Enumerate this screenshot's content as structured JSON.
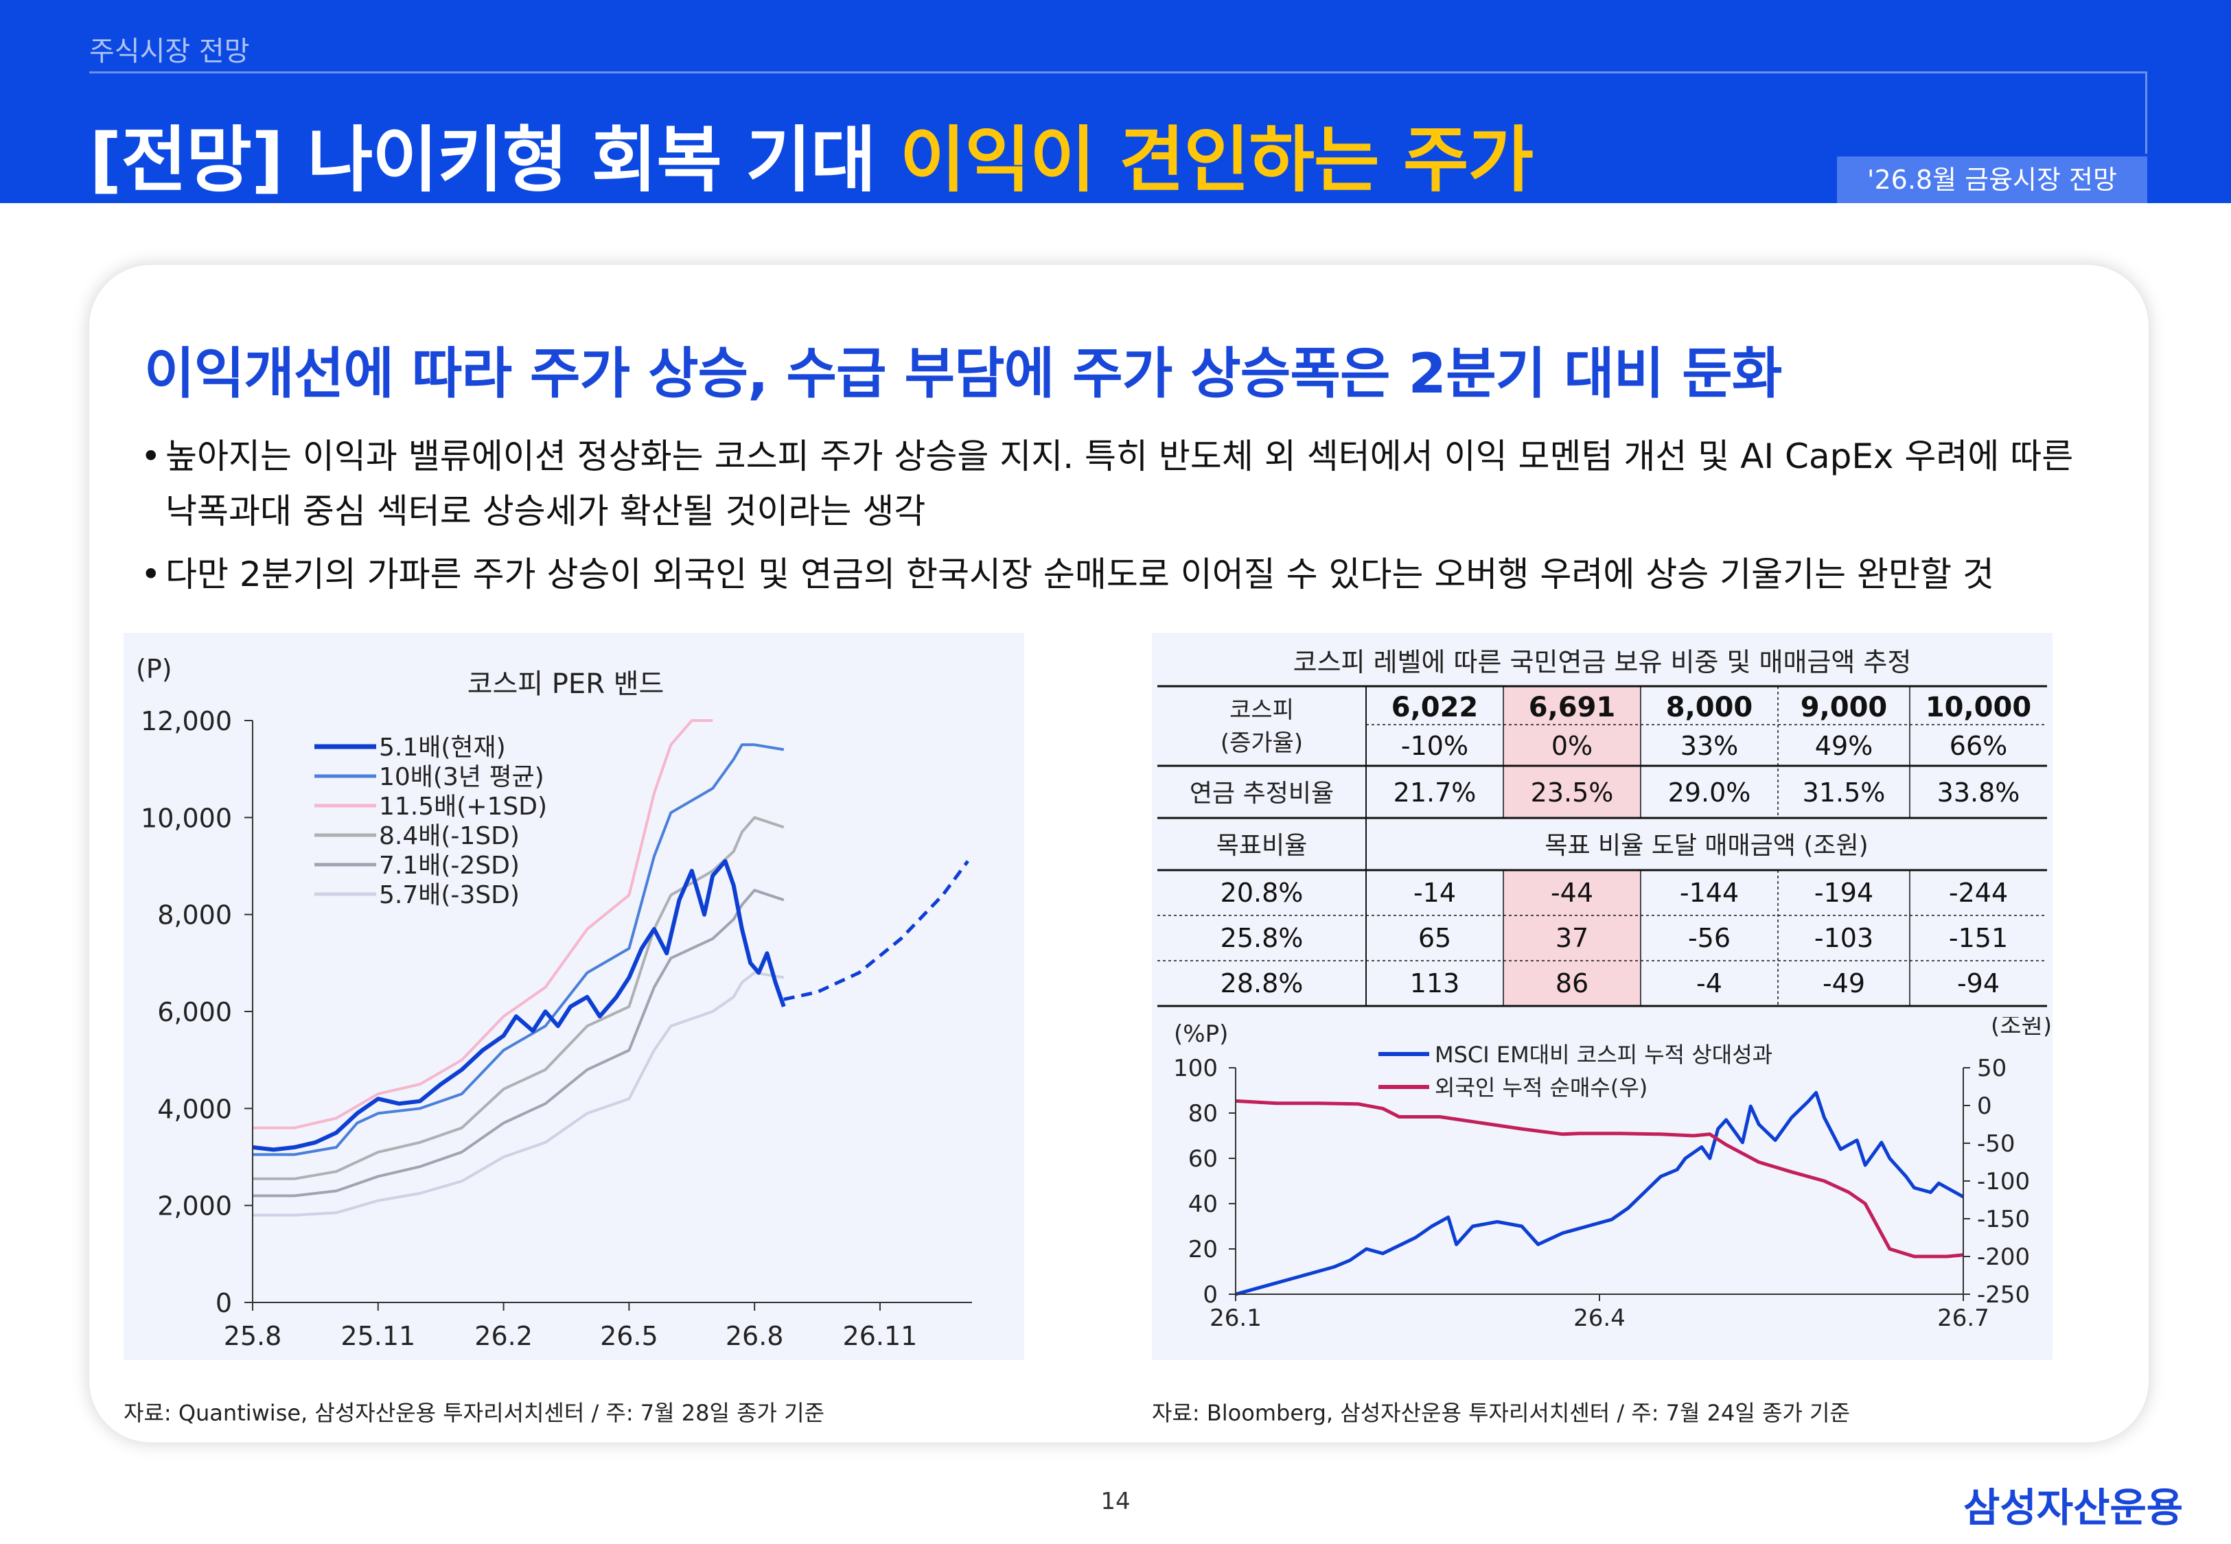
{
  "header": {
    "section_label": "주식시장 전망",
    "title_main": "[전망] 나이키형 회복 기대",
    "title_highlight": "이익이 견인하는 주가",
    "date_badge": "'26.8월 금융시장 전망"
  },
  "headline": "이익개선에 따라 주가 상승, 수급 부담에 주가 상승폭은 2분기 대비 둔화",
  "bullets": [
    "높아지는 이익과 밸류에이션 정상화는 코스피 주가 상승을 지지. 특히 반도체 외 섹터에서 이익 모멘텀 개선 및 AI CapEx 우려에 따른 낙폭과대 중심 섹터로 상승세가 확산될 것이라는 생각",
    "다만 2분기의 가파른 주가 상승이 외국인 및 연금의 한국시장 순매도로 이어질 수 있다는 오버행 우려에 상승 기울기는 완만할 것"
  ],
  "sources": {
    "left": "자료: Quantiwise, 삼성자산운용 투자리서치센터 / 주: 7월 28일 종가 기준",
    "right": "자료: Bloomberg, 삼성자산운용 투자리서치센터 / 주: 7월 24일 종가 기준"
  },
  "page_number": "14",
  "logo": "삼성자산운용",
  "colors": {
    "brand_blue": "#0B49E2",
    "highlight_yellow": "#FFC60A",
    "table_highlight": "#F7D6DC",
    "series_blue": "#0D3FD3",
    "series_crimson": "#C21F5B"
  },
  "chart_data": [
    {
      "type": "line",
      "title": "코스피 PER 밴드",
      "ylabel": "(P)",
      "ylim": [
        0,
        12000
      ],
      "yticks": [
        "0",
        "2,000",
        "4,000",
        "6,000",
        "8,000",
        "10,000",
        "12,000"
      ],
      "xticks": [
        "25.8",
        "25.11",
        "26.2",
        "26.5",
        "26.8",
        "26.11"
      ],
      "legend_position": "top-left",
      "series": [
        {
          "name": "5.1배(현재)",
          "color": "#0D3FD3",
          "points": [
            [
              0,
              3200
            ],
            [
              0.5,
              3150
            ],
            [
              1,
              3200
            ],
            [
              1.5,
              3300
            ],
            [
              2,
              3500
            ],
            [
              2.5,
              3900
            ],
            [
              3,
              4200
            ],
            [
              3.5,
              4100
            ],
            [
              4,
              4150
            ],
            [
              4.5,
              4500
            ],
            [
              5,
              4800
            ],
            [
              5.5,
              5200
            ],
            [
              6,
              5500
            ],
            [
              6.3,
              5900
            ],
            [
              6.7,
              5600
            ],
            [
              7,
              6000
            ],
            [
              7.3,
              5700
            ],
            [
              7.6,
              6100
            ],
            [
              8,
              6300
            ],
            [
              8.3,
              5900
            ],
            [
              8.7,
              6300
            ],
            [
              9,
              6700
            ],
            [
              9.3,
              7300
            ],
            [
              9.6,
              7700
            ],
            [
              9.9,
              7200
            ],
            [
              10.2,
              8300
            ],
            [
              10.5,
              8900
            ],
            [
              10.8,
              8000
            ],
            [
              11,
              8800
            ],
            [
              11.3,
              9100
            ],
            [
              11.5,
              8600
            ],
            [
              11.7,
              7700
            ],
            [
              11.9,
              7000
            ],
            [
              12.1,
              6800
            ],
            [
              12.3,
              7200
            ],
            [
              12.5,
              6600
            ],
            [
              12.7,
              6100
            ]
          ]
        },
        {
          "name": "10배(3년 평균)",
          "color": "#4A80D9",
          "points": [
            [
              0,
              3050
            ],
            [
              1,
              3050
            ],
            [
              2,
              3200
            ],
            [
              2.5,
              3700
            ],
            [
              3,
              3900
            ],
            [
              4,
              4000
            ],
            [
              5,
              4300
            ],
            [
              6,
              5200
            ],
            [
              7,
              5700
            ],
            [
              8,
              6800
            ],
            [
              9,
              7300
            ],
            [
              9.6,
              9200
            ],
            [
              10,
              10100
            ],
            [
              11,
              10600
            ],
            [
              11.5,
              11200
            ],
            [
              11.7,
              11500
            ],
            [
              12,
              11500
            ],
            [
              12.7,
              11400
            ]
          ]
        },
        {
          "name": "11.5배(+1SD)",
          "color": "#F6B6CE",
          "points": [
            [
              0,
              3600
            ],
            [
              1,
              3600
            ],
            [
              2,
              3800
            ],
            [
              3,
              4300
            ],
            [
              4,
              4500
            ],
            [
              5,
              5000
            ],
            [
              6,
              5900
            ],
            [
              7,
              6500
            ],
            [
              8,
              7700
            ],
            [
              9,
              8400
            ],
            [
              9.6,
              10500
            ],
            [
              10,
              11500
            ],
            [
              10.5,
              12000
            ],
            [
              11,
              12000
            ]
          ]
        },
        {
          "name": "8.4배(-1SD)",
          "color": "#AEB0B4",
          "points": [
            [
              0,
              2550
            ],
            [
              1,
              2550
            ],
            [
              2,
              2700
            ],
            [
              3,
              3100
            ],
            [
              4,
              3300
            ],
            [
              5,
              3600
            ],
            [
              6,
              4400
            ],
            [
              7,
              4800
            ],
            [
              8,
              5700
            ],
            [
              9,
              6100
            ],
            [
              9.6,
              7700
            ],
            [
              10,
              8400
            ],
            [
              11,
              8900
            ],
            [
              11.5,
              9300
            ],
            [
              11.7,
              9700
            ],
            [
              12,
              10000
            ],
            [
              12.7,
              9800
            ]
          ]
        },
        {
          "name": "7.1배(-2SD)",
          "color": "#9EA4B2",
          "points": [
            [
              0,
              2200
            ],
            [
              1,
              2200
            ],
            [
              2,
              2300
            ],
            [
              3,
              2600
            ],
            [
              4,
              2800
            ],
            [
              5,
              3100
            ],
            [
              6,
              3700
            ],
            [
              7,
              4100
            ],
            [
              8,
              4800
            ],
            [
              9,
              5200
            ],
            [
              9.6,
              6500
            ],
            [
              10,
              7100
            ],
            [
              11,
              7500
            ],
            [
              11.5,
              7900
            ],
            [
              11.7,
              8200
            ],
            [
              12,
              8500
            ],
            [
              12.7,
              8300
            ]
          ]
        },
        {
          "name": "5.7배(-3SD)",
          "color": "#CDD2E4",
          "points": [
            [
              0,
              1800
            ],
            [
              1,
              1800
            ],
            [
              2,
              1850
            ],
            [
              3,
              2100
            ],
            [
              4,
              2250
            ],
            [
              5,
              2500
            ],
            [
              6,
              3000
            ],
            [
              7,
              3300
            ],
            [
              8,
              3900
            ],
            [
              9,
              4200
            ],
            [
              9.6,
              5200
            ],
            [
              10,
              5700
            ],
            [
              11,
              6000
            ],
            [
              11.5,
              6300
            ],
            [
              11.7,
              6600
            ],
            [
              12,
              6800
            ],
            [
              12.7,
              6700
            ]
          ]
        },
        {
          "name": "",
          "color": "#0D3FD3",
          "style": "dashed",
          "points": [
            [
              12.7,
              6250
            ],
            [
              13.5,
              6400
            ],
            [
              14.5,
              6800
            ],
            [
              15.5,
              7500
            ],
            [
              16.5,
              8400
            ],
            [
              17.1,
              9100
            ]
          ]
        }
      ]
    },
    {
      "type": "table",
      "title": "코스피 레벨에 따른 국민연금 보유 비중 및 매매금액 추정",
      "row_header_1": "코스피",
      "row_header_1b": "(증가율)",
      "levels": [
        "6,022",
        "6,691",
        "8,000",
        "9,000",
        "10,000"
      ],
      "growth": [
        "-10%",
        "0%",
        "33%",
        "49%",
        "66%"
      ],
      "ratio_label": "연금 추정비율",
      "ratios": [
        "21.7%",
        "23.5%",
        "29.0%",
        "31.5%",
        "33.8%"
      ],
      "target_label": "목표비율",
      "target_caption": "목표 비율 도달 매매금액 (조원)",
      "highlight_column": 1,
      "rows": [
        {
          "target": "20.8%",
          "values": [
            "-14",
            "-44",
            "-144",
            "-194",
            "-244"
          ]
        },
        {
          "target": "25.8%",
          "values": [
            "65",
            "37",
            "-56",
            "-103",
            "-151"
          ]
        },
        {
          "target": "28.8%",
          "values": [
            "113",
            "86",
            "-4",
            "-49",
            "-94"
          ]
        }
      ]
    },
    {
      "type": "line",
      "ylabel_left": "(%P)",
      "ylabel_right": "(조원)",
      "ylim_left": [
        0,
        100
      ],
      "ylim_right": [
        -250,
        50
      ],
      "yticks_left": [
        "0",
        "20",
        "40",
        "60",
        "80",
        "100"
      ],
      "yticks_right": [
        "-250",
        "-200",
        "-150",
        "-100",
        "-50",
        "0",
        "50"
      ],
      "xticks": [
        "26.1",
        "26.4",
        "26.7"
      ],
      "legend_position": "top-center",
      "series": [
        {
          "name": "MSCI EM대비 코스피 누적 상대성과",
          "axis": "left",
          "color": "#0D3FD3",
          "points": [
            [
              0,
              0
            ],
            [
              4,
              4
            ],
            [
              8,
              8
            ],
            [
              12,
              12
            ],
            [
              14,
              15
            ],
            [
              16,
              20
            ],
            [
              18,
              18
            ],
            [
              22,
              25
            ],
            [
              24,
              30
            ],
            [
              26,
              34
            ],
            [
              27,
              22
            ],
            [
              29,
              30
            ],
            [
              32,
              32
            ],
            [
              35,
              30
            ],
            [
              37,
              22
            ],
            [
              40,
              27
            ],
            [
              43,
              30
            ],
            [
              46,
              33
            ],
            [
              48,
              38
            ],
            [
              50,
              45
            ],
            [
              52,
              52
            ],
            [
              54,
              55
            ],
            [
              55,
              60
            ],
            [
              57,
              65
            ],
            [
              58,
              60
            ],
            [
              59,
              73
            ],
            [
              60,
              77
            ],
            [
              62,
              67
            ],
            [
              63,
              83
            ],
            [
              64,
              75
            ],
            [
              66,
              68
            ],
            [
              68,
              78
            ],
            [
              70,
              85
            ],
            [
              71,
              89
            ],
            [
              72,
              78
            ],
            [
              74,
              64
            ],
            [
              76,
              68
            ],
            [
              77,
              57
            ],
            [
              79,
              67
            ],
            [
              80,
              60
            ],
            [
              82,
              52
            ],
            [
              83,
              47
            ],
            [
              85,
              45
            ],
            [
              86,
              49
            ],
            [
              88,
              45
            ],
            [
              89,
              43
            ]
          ]
        },
        {
          "name": "외국인 누적 순매수(우)",
          "axis": "right",
          "color": "#C21F5B",
          "points": [
            [
              0,
              6
            ],
            [
              5,
              3
            ],
            [
              10,
              3
            ],
            [
              15,
              2
            ],
            [
              18,
              -4
            ],
            [
              20,
              -15
            ],
            [
              25,
              -15
            ],
            [
              30,
              -23
            ],
            [
              35,
              -31
            ],
            [
              40,
              -38
            ],
            [
              42,
              -37
            ],
            [
              47,
              -37
            ],
            [
              52,
              -38
            ],
            [
              56,
              -40
            ],
            [
              58,
              -38
            ],
            [
              60,
              -52
            ],
            [
              64,
              -75
            ],
            [
              68,
              -88
            ],
            [
              72,
              -100
            ],
            [
              75,
              -115
            ],
            [
              77,
              -130
            ],
            [
              80,
              -190
            ],
            [
              83,
              -200
            ],
            [
              87,
              -200
            ],
            [
              89,
              -198
            ]
          ]
        }
      ]
    }
  ]
}
